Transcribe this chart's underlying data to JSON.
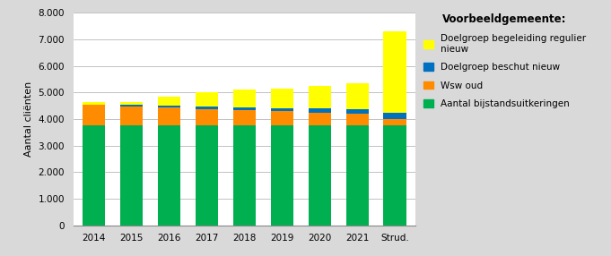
{
  "categories": [
    "2014",
    "2015",
    "2016",
    "2017",
    "2018",
    "2019",
    "2020",
    "2021",
    "Strud."
  ],
  "bijstand": [
    3750,
    3750,
    3750,
    3750,
    3750,
    3750,
    3750,
    3750,
    3750
  ],
  "wsw_oud": [
    780,
    730,
    680,
    630,
    580,
    540,
    500,
    460,
    240
  ],
  "beschut_nieuw": [
    20,
    50,
    80,
    100,
    110,
    130,
    150,
    160,
    230
  ],
  "begeleiding_nieuw": [
    100,
    120,
    340,
    520,
    660,
    730,
    850,
    980,
    3080
  ],
  "colors": {
    "bijstand": "#00B050",
    "wsw_oud": "#FF8C00",
    "beschut_nieuw": "#0070C0",
    "begeleiding_nieuw": "#FFFF00"
  },
  "ylabel": "Aantal cliënten",
  "ylim": [
    0,
    8000
  ],
  "yticks": [
    0,
    1000,
    2000,
    3000,
    4000,
    5000,
    6000,
    7000,
    8000
  ],
  "ytick_labels": [
    "0",
    "1.000",
    "2.000",
    "3.000",
    "4.000",
    "5.000",
    "6.000",
    "7.000",
    "8.000"
  ],
  "legend_title": "Voorbeeldgemeente:",
  "legend_labels": [
    "Doelgroep begeleiding regulier\nnieuw",
    "Doelgroep beschut nieuw",
    "Wsw oud",
    "Aantal bijstandsuitkeringen"
  ],
  "background_color": "#D9D9D9",
  "plot_background": "#FFFFFF",
  "bar_width": 0.6,
  "figsize": [
    6.81,
    2.86
  ],
  "dpi": 100
}
